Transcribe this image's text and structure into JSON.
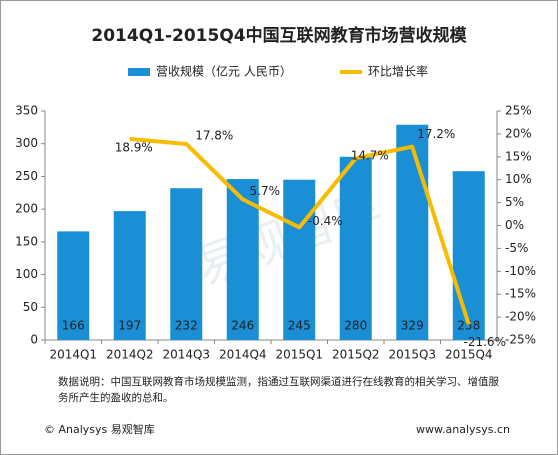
{
  "chart_data": {
    "type": "bar_line",
    "title": "2014Q1-2015Q4中国互联网教育市场营收规模",
    "categories": [
      "2014Q1",
      "2014Q2",
      "2014Q3",
      "2014Q4",
      "2015Q1",
      "2015Q2",
      "2015Q3",
      "2015Q4"
    ],
    "series": [
      {
        "name": "营收规模（亿元 人民币）",
        "color": "#1a8fd6",
        "type": "bar",
        "values": [
          166,
          197,
          232,
          246,
          245,
          280,
          329,
          258
        ]
      },
      {
        "name": "环比增长率",
        "color": "#f7bb00",
        "type": "line",
        "axis": "y2",
        "values": [
          null,
          18.9,
          17.8,
          5.7,
          -0.4,
          14.7,
          17.2,
          -21.6
        ],
        "value_labels": [
          null,
          "18.9%",
          "17.8%",
          "5.7%",
          "-0.4%",
          "14.7%",
          "17.2%",
          "-21.6%"
        ]
      }
    ],
    "ylim": [
      0,
      350
    ],
    "yticks": [
      0,
      50,
      100,
      150,
      200,
      250,
      300,
      350
    ],
    "y2lim": [
      -25,
      25
    ],
    "y2ticks": [
      {
        "value": -25,
        "label": "-25%"
      },
      {
        "value": -20,
        "label": "-20%"
      },
      {
        "value": -15,
        "label": "-15%"
      },
      {
        "value": -10,
        "label": "-10%"
      },
      {
        "value": -5,
        "label": "-5%"
      },
      {
        "value": 0,
        "label": "0%"
      },
      {
        "value": 5,
        "label": "5%"
      },
      {
        "value": 10,
        "label": "10%"
      },
      {
        "value": 15,
        "label": "15%"
      },
      {
        "value": 20,
        "label": "20%"
      },
      {
        "value": 25,
        "label": "25%"
      }
    ],
    "watermark": "易观智库",
    "note": "数据说明：中国互联网教育市场规模监测，指通过互联网渠道进行在线教育的相关学习、增值服务所产生的盈收的总和。",
    "footer_left": "© Analysys 易观智库",
    "footer_right": "www.analysys.cn"
  }
}
